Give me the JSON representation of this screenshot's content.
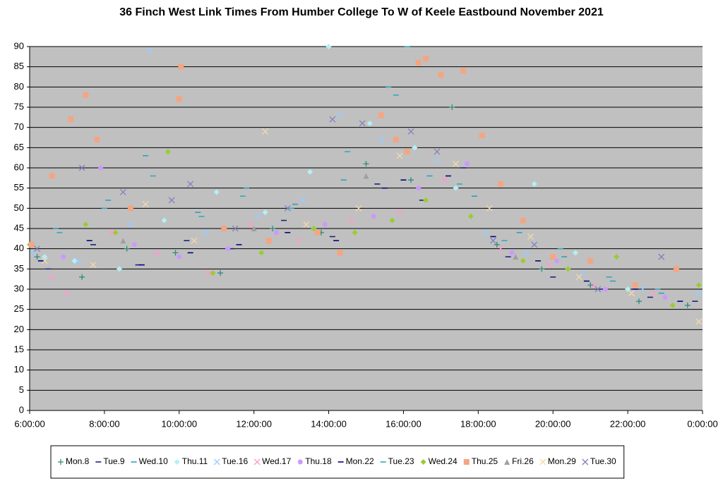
{
  "chart_data": {
    "type": "scatter",
    "title": "36 Finch West Link Times From Humber College To W of Keele Eastbound November 2021",
    "xlim": [
      6,
      24
    ],
    "ylim": [
      0,
      90
    ],
    "xticks": [
      {
        "value": 6,
        "label": "6:00:00"
      },
      {
        "value": 8,
        "label": "8:00:00"
      },
      {
        "value": 10,
        "label": "10:00:00"
      },
      {
        "value": 12,
        "label": "12:00:00"
      },
      {
        "value": 14,
        "label": "14:00:00"
      },
      {
        "value": 16,
        "label": "16:00:00"
      },
      {
        "value": 18,
        "label": "18:00:00"
      },
      {
        "value": 20,
        "label": "20:00:00"
      },
      {
        "value": 22,
        "label": "22:00:00"
      },
      {
        "value": 24,
        "label": "0:00:00"
      }
    ],
    "yticks": [
      0,
      5,
      10,
      15,
      20,
      25,
      30,
      35,
      40,
      45,
      50,
      55,
      60,
      65,
      70,
      75,
      80,
      85,
      90
    ],
    "grid": true,
    "legend": "bottom",
    "series": [
      {
        "name": "Mon.8",
        "color": "#2e8b7a",
        "marker": "plus",
        "x": [
          6.2,
          7.4,
          8.6,
          9.9,
          11.1,
          12.5,
          13.8,
          15.0,
          16.2,
          17.3,
          18.5,
          19.7,
          21.0,
          22.3,
          23.6
        ],
        "values": [
          38,
          33,
          40,
          39,
          34,
          45,
          44,
          61,
          57,
          75,
          41,
          35,
          31,
          27,
          26
        ]
      },
      {
        "name": "Tue.9",
        "color": "#1a237e",
        "marker": "dash",
        "x": [
          6.5,
          7.7,
          8.9,
          10.2,
          11.4,
          12.8,
          14.1,
          15.3,
          16.5,
          17.6,
          18.8,
          20.0,
          21.3,
          22.6,
          23.8
        ],
        "values": [
          35,
          41,
          36,
          42,
          40,
          47,
          43,
          56,
          52,
          60,
          38,
          33,
          30,
          28,
          27
        ]
      },
      {
        "name": "Wed.10",
        "color": "#2aa0c4",
        "marker": "dash",
        "x": [
          6.7,
          8.1,
          9.1,
          10.5,
          11.8,
          13.1,
          14.4,
          15.6,
          16.7,
          17.9,
          19.1,
          20.3,
          21.6,
          22.9
        ],
        "values": [
          45,
          52,
          63,
          49,
          55,
          51,
          57,
          80,
          58,
          53,
          44,
          38,
          32,
          29
        ]
      },
      {
        "name": "Thu.11",
        "color": "#b3f0f5",
        "marker": "diamond",
        "x": [
          6.4,
          7.2,
          8.4,
          9.6,
          11.0,
          12.3,
          13.5,
          14.0,
          15.1,
          16.3,
          17.4,
          19.5,
          20.6,
          22.0
        ],
        "values": [
          38,
          37,
          35,
          47,
          54,
          49,
          59,
          90,
          71,
          65,
          55,
          56,
          39,
          30
        ]
      },
      {
        "name": "Tue.16",
        "color": "#99ccff",
        "marker": "cross",
        "x": [
          6.1,
          7.3,
          8.7,
          9.2,
          10.7,
          12.1,
          13.3,
          14.3,
          15.4,
          16.9,
          18.2,
          19.3,
          20.8,
          22.4,
          23.9
        ],
        "values": [
          39,
          37,
          46,
          89,
          44,
          48,
          52,
          73,
          67,
          62,
          44,
          39,
          34,
          30,
          29
        ]
      },
      {
        "name": "Wed.17",
        "color": "#ff99cc",
        "marker": "cross",
        "x": [
          6.6,
          7.0,
          8.2,
          9.4,
          10.8,
          11.9,
          13.2,
          14.6,
          15.9,
          17.1,
          18.6,
          19.9,
          21.1,
          22.7
        ],
        "values": [
          33,
          29,
          44,
          39,
          34,
          46,
          42,
          47,
          49,
          57,
          40,
          36,
          31,
          29
        ]
      },
      {
        "name": "Thu.18",
        "color": "#cc99ff",
        "marker": "circle",
        "x": [
          6.9,
          7.9,
          8.8,
          10.0,
          11.3,
          12.6,
          13.9,
          15.2,
          16.4,
          17.7,
          18.9,
          20.1,
          21.4,
          23.0
        ],
        "values": [
          38,
          60,
          41,
          38,
          40,
          44,
          46,
          48,
          55,
          61,
          39,
          37,
          30,
          28
        ]
      },
      {
        "name": "Mon.22",
        "color": "#000080",
        "marker": "dash",
        "x": [
          6.3,
          7.6,
          9.0,
          10.3,
          11.6,
          12.9,
          14.2,
          15.5,
          16.0,
          17.2,
          18.4,
          19.6,
          20.9,
          22.2,
          23.4
        ],
        "values": [
          37,
          42,
          36,
          39,
          41,
          44,
          42,
          55,
          57,
          58,
          43,
          37,
          32,
          30,
          27
        ]
      },
      {
        "name": "Tue.23",
        "color": "#33aabb",
        "marker": "dash",
        "x": [
          6.8,
          8.0,
          9.3,
          10.6,
          11.7,
          13.0,
          14.5,
          15.8,
          16.1,
          17.5,
          18.7,
          20.2,
          21.5,
          22.8
        ],
        "values": [
          44,
          50,
          58,
          48,
          53,
          50,
          64,
          78,
          90,
          56,
          42,
          40,
          33,
          30
        ]
      },
      {
        "name": "Wed.24",
        "color": "#99cc33",
        "marker": "diamond",
        "x": [
          6.0,
          7.5,
          8.3,
          9.7,
          10.9,
          12.2,
          13.6,
          14.7,
          15.7,
          16.6,
          17.8,
          19.2,
          20.4,
          21.7,
          23.2,
          23.9
        ],
        "values": [
          41,
          46,
          44,
          64,
          34,
          39,
          45,
          44,
          47,
          52,
          48,
          37,
          35,
          38,
          26,
          31
        ]
      },
      {
        "name": "Thu.25",
        "color": "#f4a582",
        "marker": "square",
        "x": [
          6.05,
          6.6,
          7.1,
          7.5,
          7.8,
          8.7,
          10.0,
          10.05,
          11.2,
          12.4,
          13.7,
          14.3,
          15.4,
          15.8,
          16.1,
          16.4,
          16.6,
          17.0,
          17.6,
          18.1,
          18.6,
          19.2,
          20.0,
          21.0,
          22.2,
          23.3
        ],
        "values": [
          41,
          58,
          72,
          78,
          67,
          50,
          77,
          85,
          45,
          42,
          44,
          39,
          73,
          67,
          64,
          86,
          87,
          83,
          84,
          68,
          56,
          47,
          38,
          37,
          31,
          35
        ]
      },
      {
        "name": "Fri.26",
        "color": "#a0a0a0",
        "marker": "triangle",
        "x": [
          8.5,
          12.0,
          15.0,
          19.0
        ],
        "values": [
          42,
          45,
          58,
          38
        ]
      },
      {
        "name": "Mon.29",
        "color": "#f5d9a8",
        "marker": "cross",
        "x": [
          6.4,
          7.7,
          9.1,
          10.4,
          11.5,
          12.3,
          13.4,
          14.8,
          15.9,
          17.4,
          18.3,
          19.4,
          20.7,
          22.1,
          23.9
        ],
        "values": [
          37,
          36,
          51,
          42,
          45,
          69,
          46,
          50,
          63,
          61,
          50,
          43,
          33,
          29,
          22
        ]
      },
      {
        "name": "Tue.30",
        "color": "#8080c0",
        "marker": "cross",
        "x": [
          6.2,
          7.4,
          8.5,
          9.8,
          10.3,
          11.5,
          12.9,
          14.1,
          14.9,
          16.2,
          16.9,
          18.4,
          19.5,
          21.2,
          22.9
        ],
        "values": [
          40,
          60,
          54,
          52,
          56,
          45,
          50,
          72,
          71,
          69,
          64,
          42,
          41,
          30,
          38
        ]
      }
    ]
  }
}
